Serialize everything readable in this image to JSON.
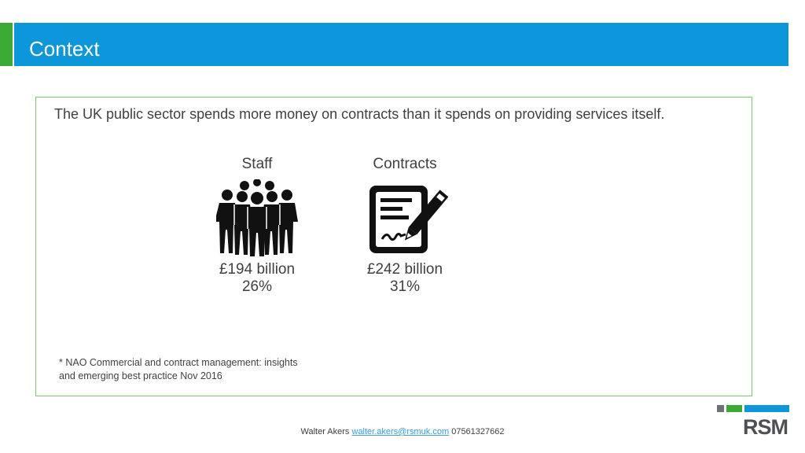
{
  "header": {
    "title": "Context",
    "bar_color": "#0d96d9",
    "accent_color": "#3aaa35"
  },
  "content": {
    "intro": "The UK public sector spends more money on contracts than it spends on providing services itself.",
    "stats": {
      "staff": {
        "label": "Staff",
        "icon": "people-group-icon",
        "amount": "£194 billion",
        "percent": "26%"
      },
      "contracts": {
        "label": "Contracts",
        "icon": "contract-signing-icon",
        "amount": "£242 billion",
        "percent": "31%"
      }
    },
    "footnote": "* NAO Commercial and contract management: insights and emerging best practice Nov 2016"
  },
  "footer": {
    "name": "Walter Akers",
    "email": "walter.akers@rsmuk.com",
    "phone": "07561327662"
  },
  "logo": {
    "text": "RSM",
    "bar_colors": [
      "#6d7075",
      "#3aaa35",
      "#0d96d9"
    ]
  }
}
